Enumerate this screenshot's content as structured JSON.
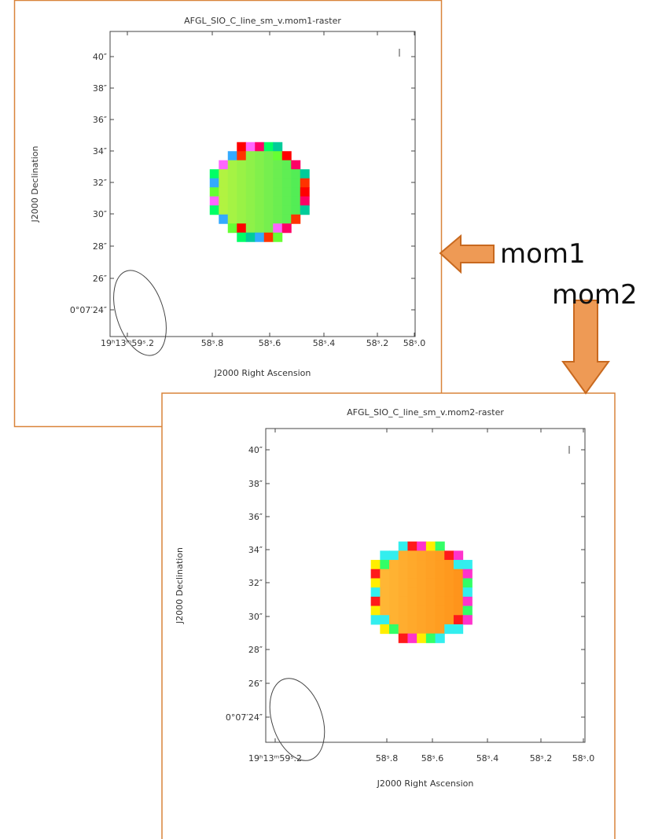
{
  "panels": [
    {
      "title": "AFGL_SIO_C_line_sm_v.mom1-raster",
      "x_axis_label": "J2000 Right Ascension",
      "y_axis_label": "J2000 Declination",
      "x_tick_labels": [
        "19ʰ13ᵐ59ˢ.2",
        "58ˢ.8",
        "58ˢ.6",
        "58ˢ.4",
        "58ˢ.2",
        "58ˢ.0"
      ],
      "y_tick_labels": [
        "40″",
        "38″",
        "36″",
        "34″",
        "32″",
        "30″",
        "28″",
        "26″",
        "0°07′24″"
      ]
    },
    {
      "title": "AFGL_SIO_C_line_sm_v.mom2-raster",
      "x_axis_label": "J2000 Right Ascension",
      "y_axis_label": "J2000 Declination",
      "x_tick_labels": [
        "19ʰ13ᵐ59ˢ.2",
        "58ˢ.8",
        "58ˢ.6",
        "58ˢ.4",
        "58ˢ.2",
        "58ˢ.0"
      ],
      "y_tick_labels": [
        "40″",
        "38″",
        "36″",
        "34″",
        "32″",
        "30″",
        "28″",
        "26″",
        "0°07′24″"
      ]
    }
  ],
  "annotations": [
    "mom1",
    "mom2"
  ]
}
